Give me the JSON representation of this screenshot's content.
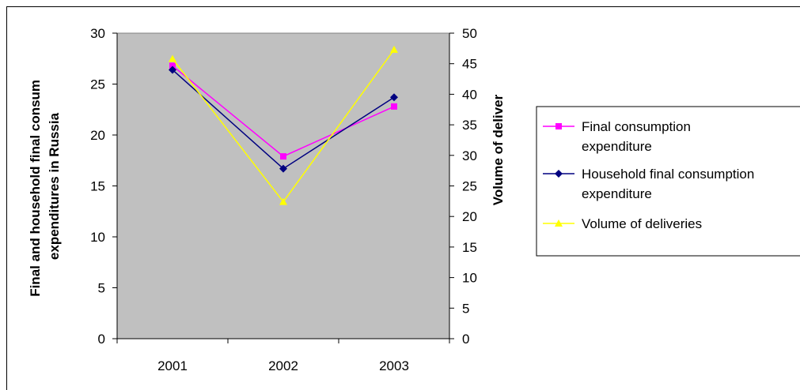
{
  "chart_data": {
    "type": "line",
    "categories": [
      "2001",
      "2002",
      "2003"
    ],
    "series": [
      {
        "name": "Final consumption expenditure",
        "axis": "left",
        "values": [
          26.8,
          17.9,
          22.8
        ],
        "color": "#ff00ff",
        "marker": "square"
      },
      {
        "name": "Household final consumption expenditure",
        "axis": "left",
        "values": [
          26.4,
          16.7,
          23.7
        ],
        "color": "#000080",
        "marker": "diamond"
      },
      {
        "name": "Volume of deliveries",
        "axis": "right",
        "values": [
          45.8,
          22.4,
          47.3
        ],
        "color": "#ffff00",
        "marker": "triangle"
      }
    ],
    "y_left": {
      "label_lines": [
        "Final and household final consum",
        "expenditures in Russia"
      ],
      "ylim": [
        0,
        30
      ],
      "ticks": [
        0,
        5,
        10,
        15,
        20,
        25,
        30
      ]
    },
    "y_right": {
      "label": "Volume of deliver",
      "ylim": [
        0,
        50
      ],
      "ticks": [
        0,
        5,
        10,
        15,
        20,
        25,
        30,
        35,
        40,
        45,
        50
      ]
    },
    "plot_background": "#c0c0c0",
    "grid": false,
    "legend_position": "right",
    "legend_lines": [
      [
        "Final consumption",
        "expenditure"
      ],
      [
        "Household final consumption",
        "expenditure"
      ],
      [
        "Volume of deliveries"
      ]
    ]
  }
}
